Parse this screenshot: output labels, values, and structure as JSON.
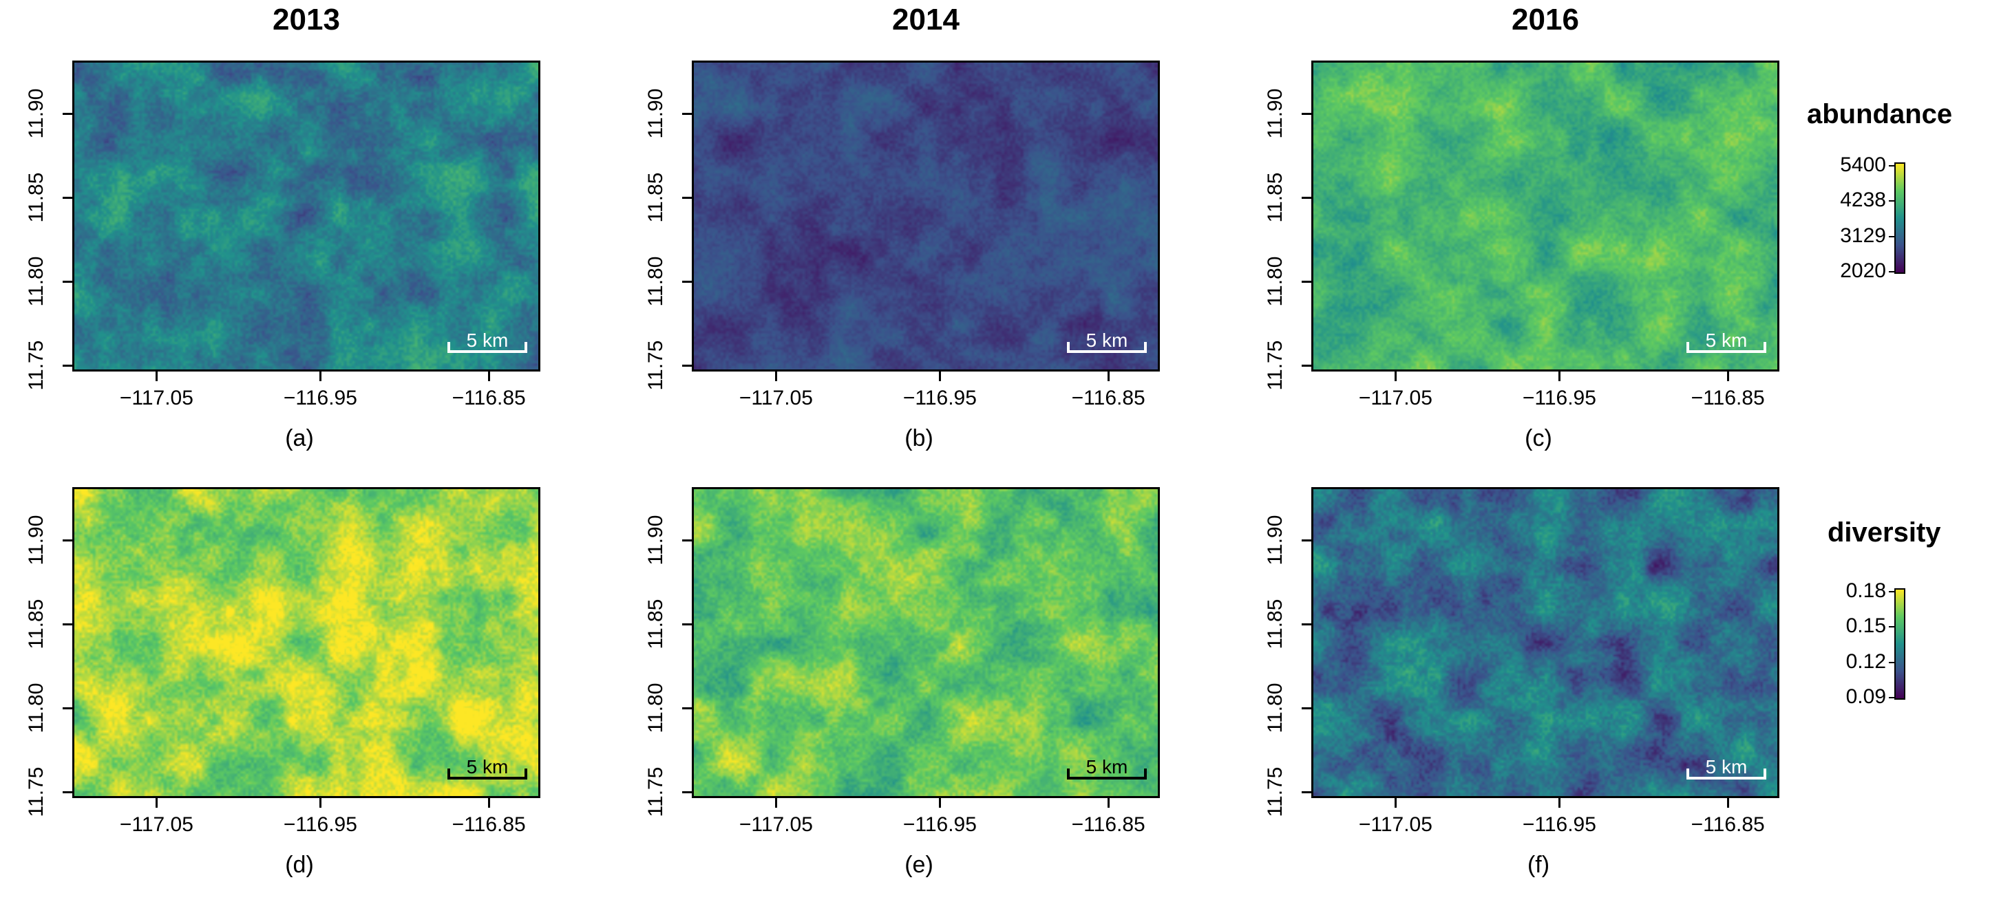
{
  "years": [
    "2013",
    "2014",
    "2016"
  ],
  "axis": {
    "y_ticks": [
      "11.75",
      "11.80",
      "11.85",
      "11.90"
    ],
    "x_ticks": [
      "−117.05",
      "−116.95",
      "−116.85"
    ]
  },
  "scalebar_label": "5 km",
  "panels": [
    {
      "label": "(a)",
      "year": "2013",
      "variable": "abundance",
      "colormap": "viridis",
      "mean_level": 0.42,
      "variability": 0.12,
      "scalebar_color": "#ffffff"
    },
    {
      "label": "(b)",
      "year": "2014",
      "variable": "abundance",
      "colormap": "viridis",
      "mean_level": 0.22,
      "variability": 0.07,
      "scalebar_color": "#ffffff"
    },
    {
      "label": "(c)",
      "year": "2016",
      "variable": "abundance",
      "colormap": "viridis",
      "mean_level": 0.66,
      "variability": 0.1,
      "scalebar_color": "#ffffff"
    },
    {
      "label": "(d)",
      "year": "2013",
      "variable": "diversity",
      "colormap": "viridis",
      "mean_level": 0.86,
      "variability": 0.13,
      "scalebar_color": "#000000"
    },
    {
      "label": "(e)",
      "year": "2014",
      "variable": "diversity",
      "colormap": "viridis",
      "mean_level": 0.74,
      "variability": 0.12,
      "scalebar_color": "#000000"
    },
    {
      "label": "(f)",
      "year": "2016",
      "variable": "diversity",
      "colormap": "viridis",
      "mean_level": 0.36,
      "variability": 0.14,
      "scalebar_color": "#ffffff"
    }
  ],
  "legends": {
    "abundance": {
      "title": "abundance",
      "ticks": [
        "5400",
        "4238",
        "3129",
        "2020"
      ]
    },
    "diversity": {
      "title": "diversity",
      "ticks": [
        "0.18",
        "0.15",
        "0.12",
        "0.09"
      ]
    }
  },
  "colors": {
    "viridis": [
      "#440154",
      "#3b528b",
      "#21918c",
      "#5ec962",
      "#fde725"
    ]
  }
}
